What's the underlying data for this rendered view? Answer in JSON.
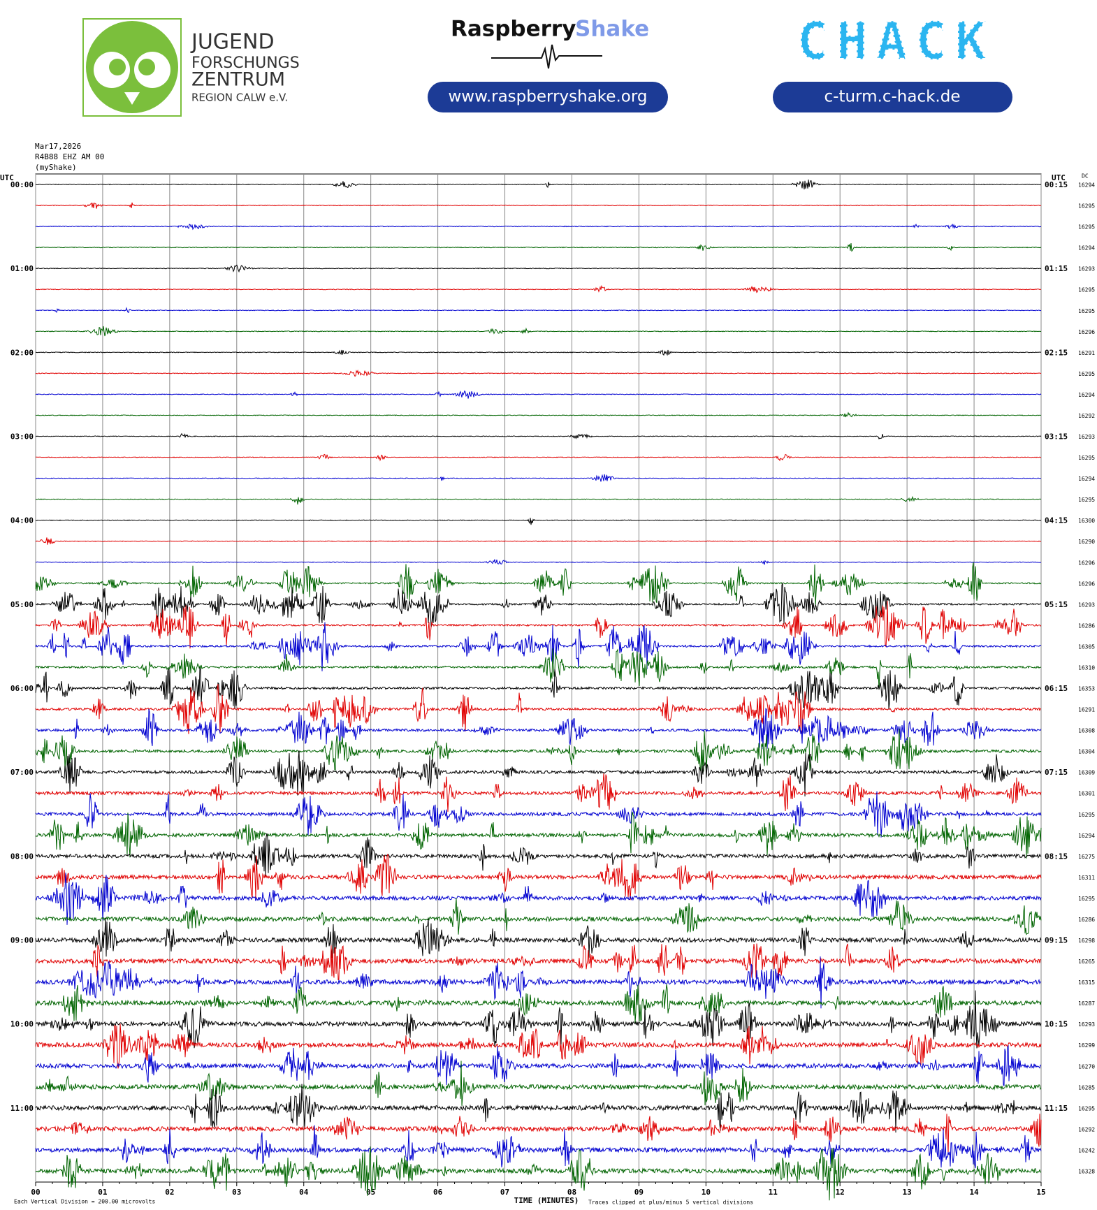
{
  "header": {
    "jfz_lines": [
      "JUGEND",
      "FORSCHUNGS",
      "ZENTRUM",
      "REGION CALW e.V."
    ],
    "rs_word1": "Raspberry",
    "rs_word2": "Shake",
    "rs_url": "www.raspberryshake.org",
    "chack": "CHACK",
    "chack_url": "c-turm.c-hack.de"
  },
  "plot": {
    "date": "Mar17,2026",
    "station": "R4B88 EHZ AM 00",
    "source": "(myShake)",
    "utc_left": "UTC",
    "utc_right": "UTC",
    "dc_label": "DC",
    "hours_left": [
      "00:00",
      "01:00",
      "02:00",
      "03:00",
      "04:00",
      "05:00",
      "06:00",
      "07:00",
      "08:00",
      "09:00",
      "10:00",
      "11:00"
    ],
    "hours_right": [
      "00:15",
      "01:15",
      "02:15",
      "03:15",
      "04:15",
      "05:15",
      "06:15",
      "07:15",
      "08:15",
      "09:15",
      "10:15",
      "11:15"
    ],
    "dc_values": [
      16294,
      16295,
      16295,
      16294,
      16293,
      16295,
      16295,
      16296,
      16291,
      16295,
      16294,
      16292,
      16293,
      16295,
      16294,
      16295,
      16300,
      16290,
      16296,
      16296,
      16293,
      16286,
      16305,
      16310,
      16353,
      16291,
      16308,
      16304,
      16309,
      16301,
      16295,
      16294,
      16275,
      16311,
      16295,
      16286,
      16298,
      16265,
      16315,
      16287,
      16293,
      16299,
      16270,
      16285,
      16295,
      16292,
      16242,
      16328
    ],
    "trace_colors": [
      "#000000",
      "#e00000",
      "#0000d0",
      "#006400"
    ],
    "x_ticks": [
      "00",
      "01",
      "02",
      "03",
      "04",
      "05",
      "06",
      "07",
      "08",
      "09",
      "10",
      "11",
      "12",
      "13",
      "14",
      "15"
    ],
    "x_label": "TIME (MINUTES)",
    "scale_note": "Each Vertical Division =  200.00 microvolts",
    "clip_note": "Traces clipped at plus/minus 5 vertical divisions"
  }
}
